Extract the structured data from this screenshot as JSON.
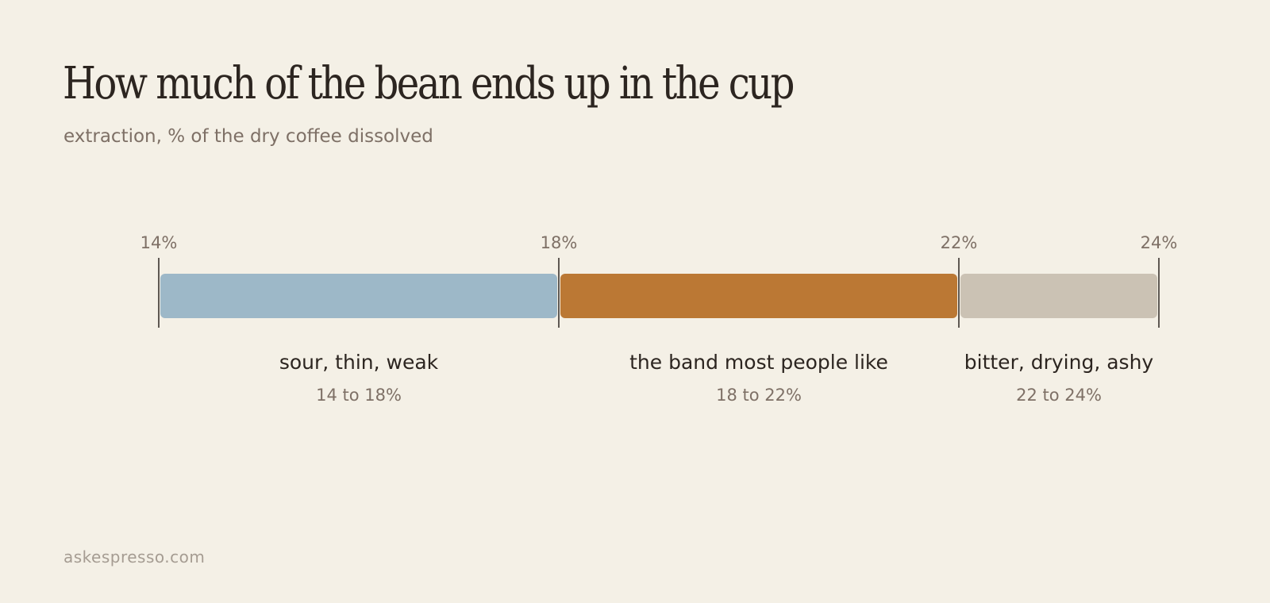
{
  "title": "How much of the bean ends up in the cup",
  "subtitle": "extraction, % of the dry coffee dissolved",
  "footer": "askespresso.com",
  "chart_data": {
    "type": "bar",
    "orientation": "horizontal-stacked-range",
    "title": "How much of the bean ends up in the cup",
    "subtitle": "extraction, % of the dry coffee dissolved",
    "xlim": [
      14,
      24
    ],
    "ticks": [
      {
        "value": 14,
        "label": "14%"
      },
      {
        "value": 18,
        "label": "18%"
      },
      {
        "value": 22,
        "label": "22%"
      },
      {
        "value": 24,
        "label": "24%"
      }
    ],
    "segments": [
      {
        "start": 14,
        "end": 18,
        "label": "sour, thin, weak",
        "range_label": "14 to 18%",
        "color": "#9db8c8"
      },
      {
        "start": 18,
        "end": 22,
        "label": "the band most people like",
        "range_label": "18 to 22%",
        "color": "#bb7834"
      },
      {
        "start": 22,
        "end": 24,
        "label": "bitter, drying, ashy",
        "range_label": "22 to 24%",
        "color": "#cbc2b4"
      }
    ],
    "grid": false,
    "legend": "none"
  }
}
